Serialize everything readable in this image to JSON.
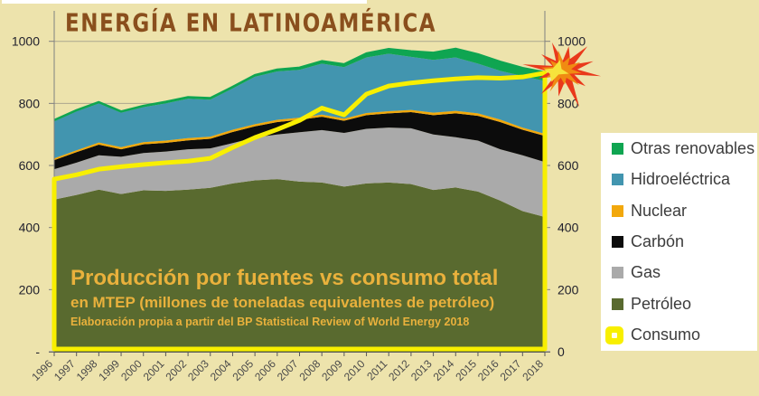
{
  "title": "ENERGÍA EN LATINOAMÉRICA",
  "annotation": {
    "line1": "Producción por fuentes vs consumo total",
    "line2": "en MTEP (millones de toneladas equivalentes de petróleo)",
    "line3": "Elaboración propia a partir del BP Statistical Review of World Energy 2018"
  },
  "legend": {
    "position": "right",
    "items": [
      {
        "key": "otras-renovables",
        "label": "Otras renovables",
        "color": "#0FA551",
        "marker": "square"
      },
      {
        "key": "hidroelectrica",
        "label": "Hidroeléctrica",
        "color": "#4295AF",
        "marker": "square"
      },
      {
        "key": "nuclear",
        "label": "Nuclear",
        "color": "#F2A80C",
        "marker": "square"
      },
      {
        "key": "carbon",
        "label": "Carbón",
        "color": "#0C0C0C",
        "marker": "square"
      },
      {
        "key": "gas",
        "label": "Gas",
        "color": "#AAAAAA",
        "marker": "square"
      },
      {
        "key": "petroleo",
        "label": "Petróleo",
        "color": "#596A2F",
        "marker": "square"
      },
      {
        "key": "consumo",
        "label": "Consumo",
        "color": "#F8EF00",
        "marker": "rounded"
      }
    ]
  },
  "chart_data": {
    "type": "area",
    "stacked": true,
    "title": "ENERGÍA EN LATINOAMÉRICA",
    "unit": "MTEP",
    "grid": true,
    "legend_position": "right",
    "ylim": [
      0,
      1000
    ],
    "y_ticks": [
      0,
      200,
      400,
      600,
      800,
      1000
    ],
    "y_tick_labels_left": [
      "-",
      "200",
      "400",
      "600",
      "800",
      "1000"
    ],
    "y_tick_labels_right": [
      "0",
      "200",
      "400",
      "600",
      "800",
      "1000"
    ],
    "x": [
      "1996",
      "1997",
      "1998",
      "1999",
      "2000",
      "2001",
      "2002",
      "2003",
      "2004",
      "2005",
      "2006",
      "2007",
      "2008",
      "2009",
      "2010",
      "2011",
      "2012",
      "2013",
      "2014",
      "2015",
      "2016",
      "2017",
      "2018"
    ],
    "series": [
      {
        "key": "petroleo",
        "name": "Petróleo",
        "color": "#596A2F",
        "values": [
          490,
          505,
          522,
          508,
          520,
          518,
          522,
          528,
          542,
          552,
          556,
          548,
          545,
          532,
          542,
          545,
          540,
          521,
          529,
          516,
          487,
          453,
          434
        ]
      },
      {
        "key": "gas",
        "name": "Gas",
        "color": "#AAAAAA",
        "values": [
          98,
          104,
          111,
          120,
          120,
          127,
          130,
          127,
          130,
          138,
          144,
          159,
          169,
          173,
          176,
          177,
          180,
          179,
          162,
          164,
          165,
          180,
          177
        ]
      },
      {
        "key": "carbon",
        "name": "Carbón",
        "color": "#0C0C0C",
        "values": [
          29,
          34,
          34,
          24,
          28,
          28,
          29,
          31,
          36,
          36,
          40,
          40,
          43,
          39,
          44,
          46,
          52,
          62,
          77,
          80,
          88,
          82,
          84
        ]
      },
      {
        "key": "nuclear",
        "name": "Nuclear",
        "color": "#F2A80C",
        "values": [
          6,
          6,
          7,
          7,
          7,
          7,
          7,
          7,
          7,
          7,
          7,
          7,
          7,
          7,
          7,
          7,
          7,
          8,
          8,
          8,
          8,
          7,
          7
        ]
      },
      {
        "key": "hidroelectrica",
        "name": "Hidroeléctrica",
        "color": "#4295AF",
        "values": [
          119,
          125,
          126,
          111,
          113,
          120,
          127,
          119,
          133,
          153,
          156,
          154,
          164,
          166,
          179,
          185,
          171,
          170,
          172,
          160,
          157,
          166,
          170
        ]
      },
      {
        "key": "otras-renovables",
        "name": "Otras renovables",
        "color": "#0FA551",
        "values": [
          4,
          4,
          4,
          4,
          4,
          5,
          5,
          5,
          5,
          5,
          6,
          7,
          8,
          9,
          13,
          15,
          18,
          23,
          28,
          30,
          29,
          26,
          28
        ]
      }
    ],
    "line": {
      "key": "consumo",
      "name": "Consumo",
      "color": "#F8EF00",
      "values": [
        556,
        570,
        588,
        596,
        603,
        609,
        614,
        623,
        658,
        690,
        716,
        745,
        785,
        763,
        830,
        856,
        866,
        873,
        879,
        883,
        881,
        885,
        898
      ]
    }
  },
  "starburst": {
    "outer": "#E9391B",
    "mid": "#F08B12",
    "core": "#F6E33C"
  },
  "colors": {
    "background": "#EDE3AC",
    "title": "#8A4F1D",
    "annotation": "#E9B13C",
    "grid": "#ACA78E",
    "axis": "#808080",
    "tick_label_y": "#21212D",
    "tick_label_x": "#4A4A4A",
    "legend_background": "#FFFFFF"
  }
}
